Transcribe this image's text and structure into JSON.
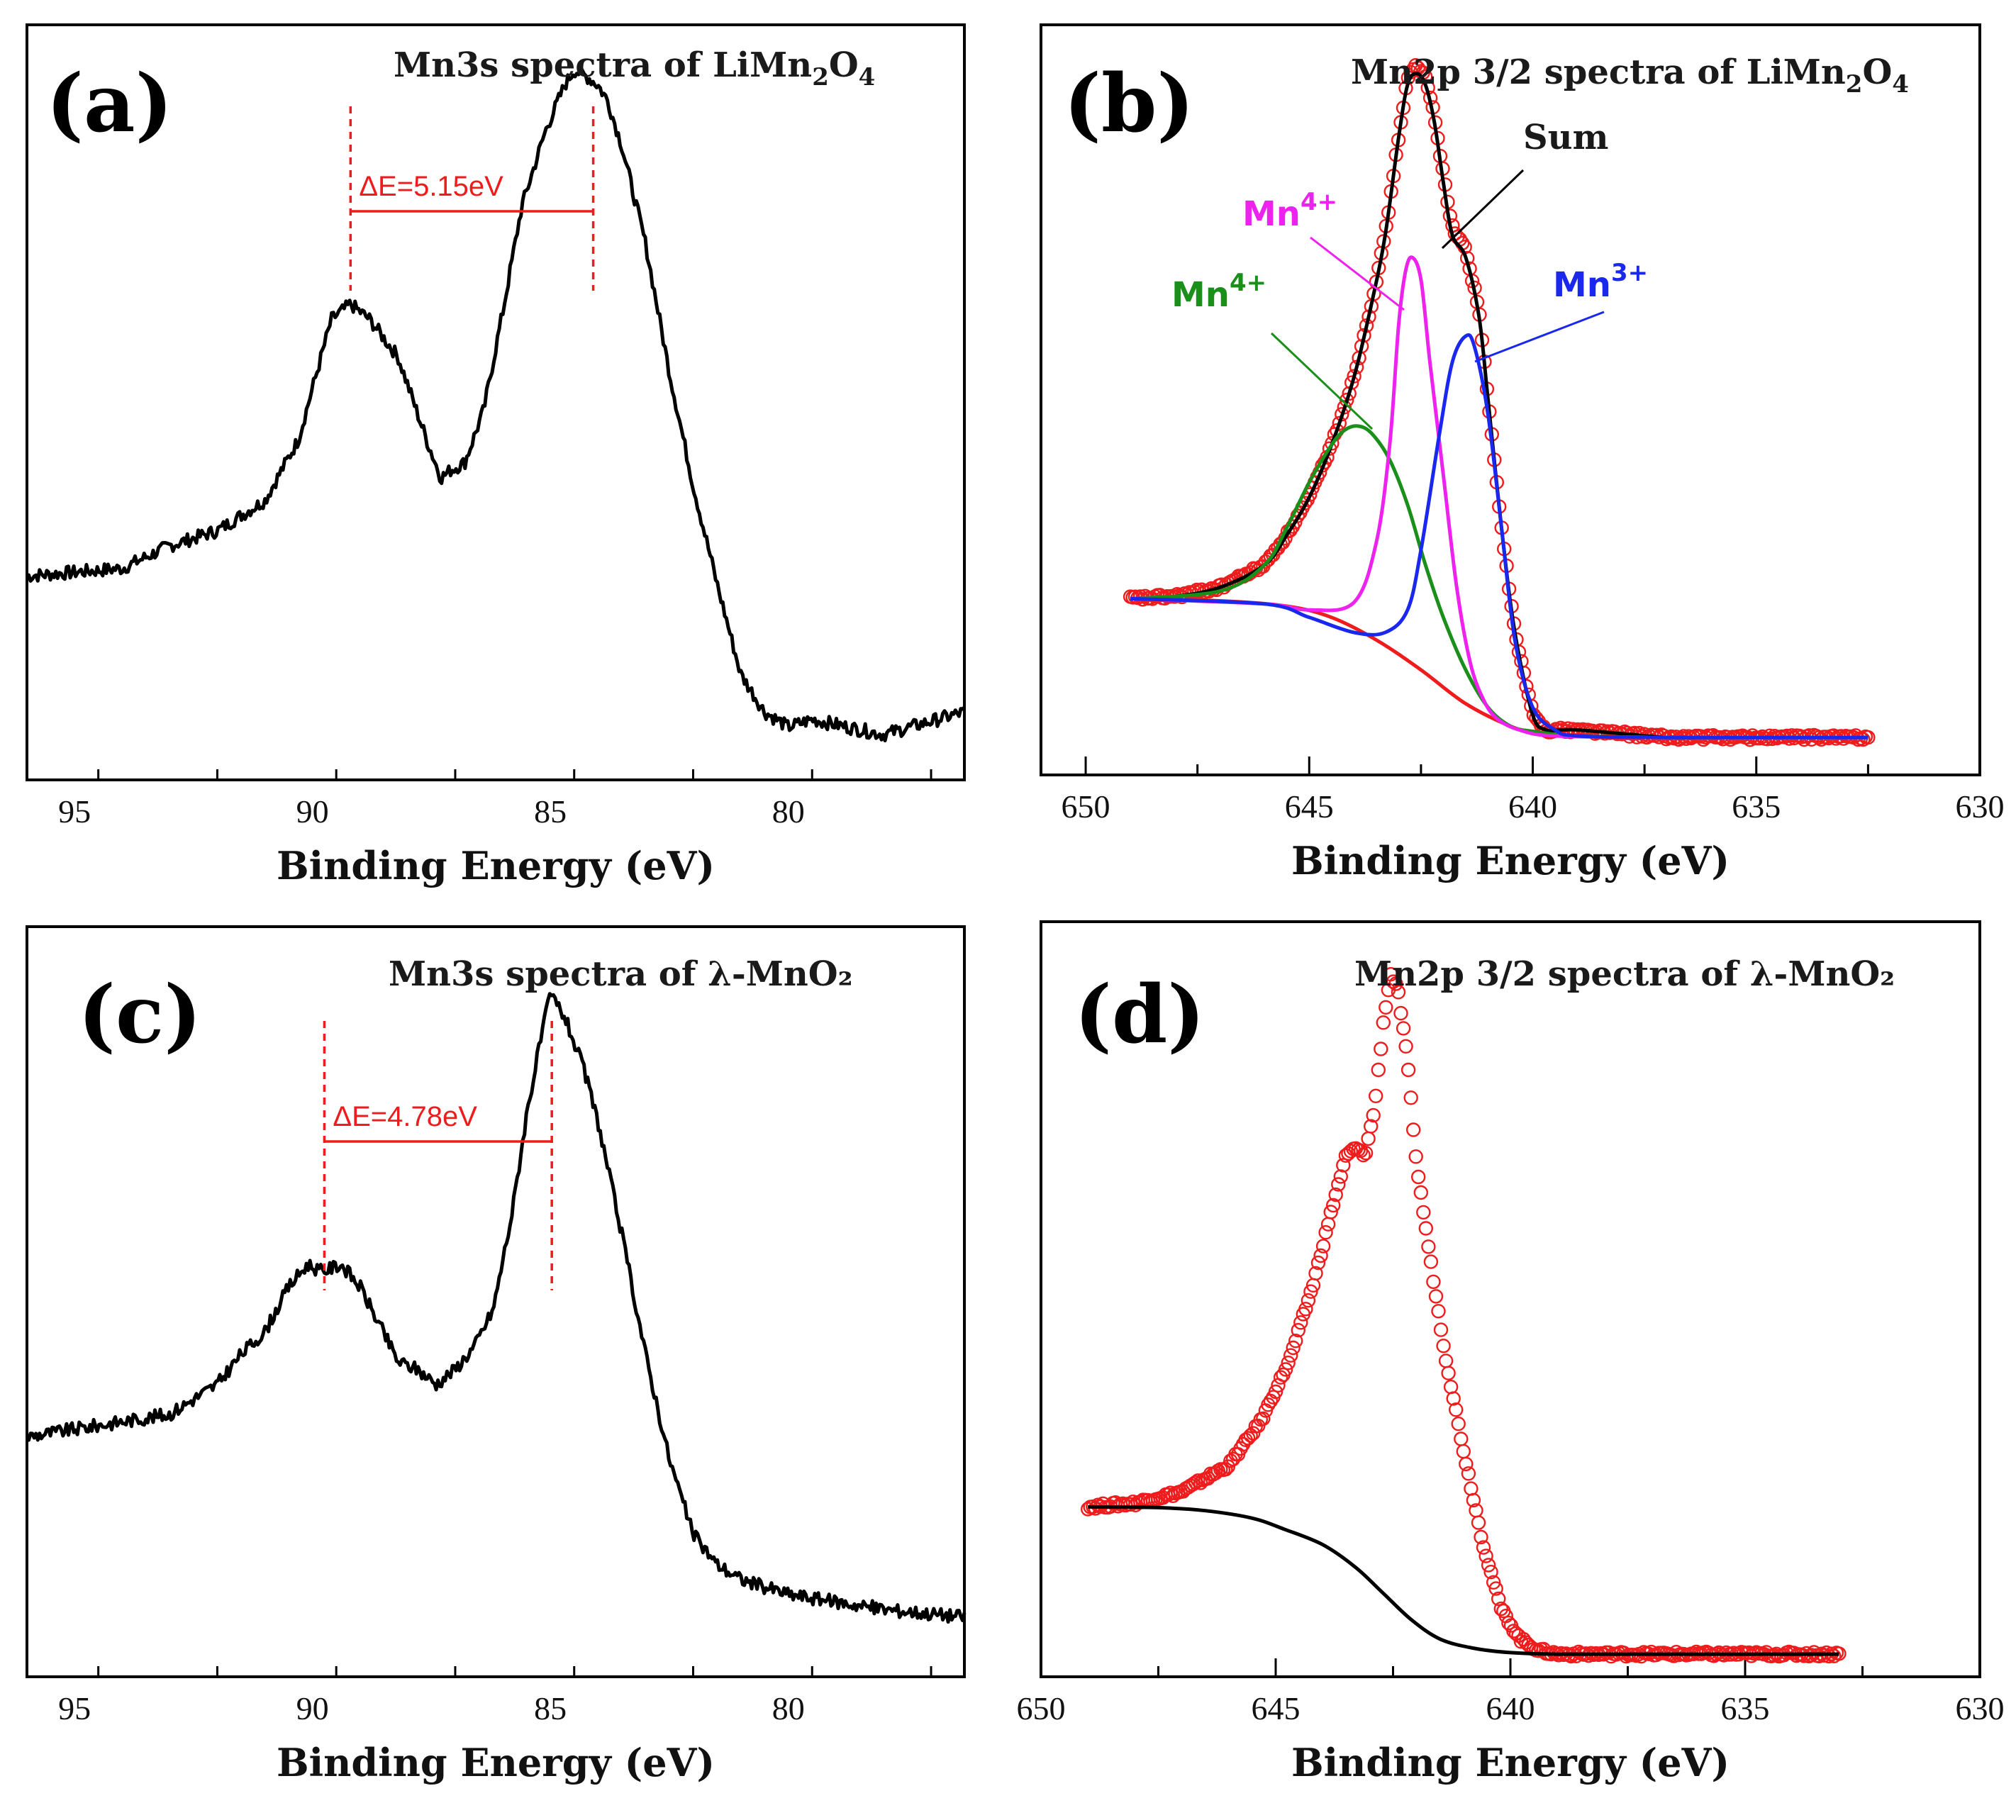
{
  "figure": {
    "panels": [
      {
        "id": "a",
        "label": "(a)",
        "title_pre": "Mn3s spectra of LiMn",
        "title_sub1": "2",
        "title_mid": "O",
        "title_sub2": "4"
      },
      {
        "id": "b",
        "label": "(b)",
        "title_pre": "Mn2p 3/2 spectra of LiMn",
        "title_sub1": "2",
        "title_mid": "O",
        "title_sub2": "4"
      },
      {
        "id": "c",
        "label": "(c)",
        "title_pre": "Mn3s spectra of λ-MnO₂"
      },
      {
        "id": "d",
        "label": "(d)",
        "title_pre": "Mn2p 3/2 spectra of λ-MnO₂"
      }
    ]
  },
  "colors": {
    "black": "#000000",
    "red": "#ee1c1c",
    "green": "#1a8f1a",
    "magenta": "#ee22ee",
    "blue": "#1a28ee"
  },
  "chart_data": [
    {
      "id": "a",
      "type": "line",
      "title": "Mn3s spectra of LiMn2O4",
      "xlabel": "Binding Energy (eV)",
      "ylabel": "",
      "xlim": [
        96,
        76.3
      ],
      "ylim": [
        0,
        1
      ],
      "xticks": [
        95,
        90,
        85,
        80
      ],
      "series": [
        {
          "name": "Mn3s",
          "color": "black",
          "style": "line",
          "x": [
            96,
            94,
            93,
            92,
            91,
            90.3,
            89.6,
            89.2,
            88.8,
            88.2,
            87.6,
            87.3,
            87.1,
            86.8,
            86.4,
            86.0,
            85.6,
            85.1,
            84.7,
            84.5,
            84.2,
            84.0,
            83.8,
            83.5,
            83.0,
            82.5,
            82.0,
            81.5,
            81.0,
            80.5,
            80.0,
            79.5,
            78.0,
            76.3
          ],
          "y": [
            0.27,
            0.28,
            0.31,
            0.33,
            0.37,
            0.45,
            0.61,
            0.63,
            0.61,
            0.56,
            0.45,
            0.4,
            0.41,
            0.42,
            0.49,
            0.62,
            0.76,
            0.86,
            0.92,
            0.94,
            0.93,
            0.92,
            0.9,
            0.84,
            0.71,
            0.54,
            0.39,
            0.26,
            0.14,
            0.09,
            0.07,
            0.08,
            0.06,
            0.09
          ]
        }
      ],
      "annotations": [
        {
          "text": "ΔE=5.15eV",
          "x1": 89.2,
          "x2": 84.1,
          "color": "red"
        }
      ]
    },
    {
      "id": "b",
      "type": "line",
      "title": "Mn2p 3/2 spectra of LiMn2O4",
      "xlabel": "Binding Energy (eV)",
      "ylabel": "",
      "xlim": [
        651,
        630
      ],
      "ylim": [
        0,
        1
      ],
      "xticks": [
        650,
        645,
        640,
        635,
        630
      ],
      "series": [
        {
          "name": "Raw data",
          "color": "red",
          "style": "circles",
          "x": [
            649.0,
            648.0,
            647.0,
            646.0,
            645.5,
            645.0,
            644.5,
            644.0,
            643.6,
            643.3,
            643.0,
            642.8,
            642.6,
            642.4,
            642.2,
            642.0,
            641.8,
            641.5,
            641.2,
            641.0,
            640.7,
            640.4,
            640.0,
            639.7,
            639.4,
            639.0,
            638.0,
            637.0,
            636.0,
            635.0,
            634.0,
            632.5
          ],
          "y": [
            0.235,
            0.238,
            0.25,
            0.28,
            0.32,
            0.37,
            0.44,
            0.53,
            0.63,
            0.72,
            0.85,
            0.93,
            0.945,
            0.93,
            0.88,
            0.8,
            0.73,
            0.7,
            0.62,
            0.5,
            0.33,
            0.19,
            0.08,
            0.06,
            0.06,
            0.06,
            0.055,
            0.05,
            0.05,
            0.05,
            0.05,
            0.05
          ]
        },
        {
          "name": "Sum",
          "color": "black",
          "style": "line",
          "x": [
            649.0,
            648.0,
            647.0,
            646.0,
            645.5,
            645.0,
            644.5,
            644.0,
            643.6,
            643.3,
            643.0,
            642.8,
            642.6,
            642.4,
            642.2,
            642.0,
            641.8,
            641.5,
            641.2,
            641.0,
            640.7,
            640.4,
            640.0,
            639.7,
            639.4,
            639.0,
            638.0,
            637.0,
            636.0,
            635.0,
            634.0,
            632.5
          ],
          "y": [
            0.235,
            0.238,
            0.25,
            0.28,
            0.32,
            0.37,
            0.44,
            0.53,
            0.63,
            0.72,
            0.85,
            0.92,
            0.935,
            0.92,
            0.87,
            0.79,
            0.72,
            0.69,
            0.61,
            0.5,
            0.33,
            0.19,
            0.08,
            0.06,
            0.06,
            0.06,
            0.055,
            0.05,
            0.05,
            0.05,
            0.05,
            0.05
          ]
        },
        {
          "name": "Background",
          "color": "red",
          "style": "line",
          "x": [
            649.0,
            647.0,
            645.5,
            644.5,
            643.5,
            642.5,
            641.5,
            640.5,
            640.0,
            639.0,
            637.0,
            632.5
          ],
          "y": [
            0.235,
            0.232,
            0.225,
            0.21,
            0.18,
            0.14,
            0.095,
            0.065,
            0.058,
            0.052,
            0.05,
            0.05
          ]
        },
        {
          "name": "Mn4+ (green)",
          "color": "green",
          "style": "line",
          "x": [
            649.0,
            647.0,
            646.0,
            645.5,
            645.0,
            644.5,
            644.2,
            643.9,
            643.6,
            643.2,
            642.8,
            642.4,
            642.0,
            641.5,
            641.0,
            640.5,
            640.0,
            639.0,
            637.0,
            632.5
          ],
          "y": [
            0.235,
            0.245,
            0.28,
            0.33,
            0.39,
            0.44,
            0.46,
            0.465,
            0.455,
            0.42,
            0.36,
            0.28,
            0.21,
            0.14,
            0.09,
            0.065,
            0.058,
            0.052,
            0.05,
            0.05
          ]
        },
        {
          "name": "Mn4+ (magenta)",
          "color": "magenta",
          "style": "line",
          "x": [
            649.0,
            646.0,
            645.0,
            644.0,
            643.5,
            643.2,
            643.0,
            642.85,
            642.7,
            642.5,
            642.3,
            642.0,
            641.7,
            641.4,
            641.1,
            640.8,
            640.3,
            639.5,
            637.0,
            632.5
          ],
          "y": [
            0.235,
            0.228,
            0.22,
            0.23,
            0.31,
            0.44,
            0.6,
            0.67,
            0.69,
            0.66,
            0.55,
            0.4,
            0.25,
            0.15,
            0.1,
            0.075,
            0.06,
            0.052,
            0.05,
            0.05
          ]
        },
        {
          "name": "Mn3+",
          "color": "blue",
          "style": "line",
          "x": [
            649.0,
            646.0,
            645.0,
            644.0,
            643.3,
            642.8,
            642.5,
            642.1,
            641.8,
            641.5,
            641.3,
            641.0,
            640.7,
            640.4,
            640.0,
            639.5,
            639.0,
            637.0,
            632.5
          ],
          "y": [
            0.235,
            0.228,
            0.21,
            0.19,
            0.19,
            0.22,
            0.3,
            0.45,
            0.55,
            0.585,
            0.57,
            0.48,
            0.33,
            0.18,
            0.09,
            0.06,
            0.052,
            0.05,
            0.05
          ]
        }
      ],
      "annotations": [
        {
          "text": "Sum",
          "color": "black"
        },
        {
          "text": "Mn",
          "sup": "4+",
          "color": "magenta"
        },
        {
          "text": "Mn",
          "sup": "4+",
          "color": "green"
        },
        {
          "text": "Mn",
          "sup": "3+",
          "color": "blue"
        }
      ]
    },
    {
      "id": "c",
      "type": "line",
      "title": "Mn3s spectra of λ-MnO2",
      "xlabel": "Binding Energy (eV)",
      "ylabel": "",
      "xlim": [
        96,
        76.3
      ],
      "ylim": [
        0,
        1
      ],
      "xticks": [
        95,
        90,
        85,
        80
      ],
      "series": [
        {
          "name": "Mn3s",
          "color": "black",
          "style": "line",
          "x": [
            96,
            95,
            94,
            93,
            92.5,
            92,
            91.5,
            91,
            90.5,
            90.1,
            89.8,
            89.4,
            89.0,
            88.6,
            88.2,
            87.8,
            87.4,
            87.0,
            86.6,
            86.2,
            85.8,
            85.5,
            85.2,
            85.0,
            84.7,
            84.3,
            84.0,
            83.5,
            83.0,
            82.5,
            82.0,
            81.5,
            81.0,
            80.0,
            79.0,
            78.0,
            76.3
          ],
          "y": [
            0.32,
            0.33,
            0.34,
            0.35,
            0.37,
            0.39,
            0.43,
            0.46,
            0.52,
            0.55,
            0.54,
            0.55,
            0.52,
            0.47,
            0.42,
            0.41,
            0.39,
            0.41,
            0.44,
            0.49,
            0.62,
            0.75,
            0.85,
            0.91,
            0.88,
            0.81,
            0.74,
            0.59,
            0.43,
            0.29,
            0.19,
            0.15,
            0.13,
            0.11,
            0.1,
            0.09,
            0.08
          ]
        }
      ],
      "annotations": [
        {
          "text": "ΔE=4.78eV",
          "x1": 89.75,
          "x2": 84.97,
          "color": "red"
        }
      ]
    },
    {
      "id": "d",
      "type": "line",
      "title": "Mn2p 3/2 spectra of λ-MnO2",
      "xlabel": "Binding Energy (eV)",
      "ylabel": "",
      "xlim": [
        650,
        630
      ],
      "ylim": [
        0,
        1
      ],
      "xticks": [
        650,
        645,
        640,
        635,
        630
      ],
      "series": [
        {
          "name": "Raw data",
          "color": "red",
          "style": "circles",
          "x": [
            649.0,
            648.0,
            647.0,
            646.0,
            645.3,
            644.7,
            644.2,
            643.8,
            643.5,
            643.3,
            643.1,
            642.9,
            642.7,
            642.55,
            642.4,
            642.2,
            642.0,
            641.7,
            641.4,
            641.0,
            640.6,
            640.2,
            639.8,
            639.4,
            639.0,
            638.0,
            637.0,
            636.0,
            635.0,
            634.0,
            633.0
          ],
          "y": [
            0.225,
            0.23,
            0.245,
            0.28,
            0.34,
            0.42,
            0.52,
            0.62,
            0.69,
            0.7,
            0.69,
            0.75,
            0.87,
            0.93,
            0.91,
            0.82,
            0.68,
            0.55,
            0.43,
            0.3,
            0.18,
            0.09,
            0.05,
            0.035,
            0.03,
            0.03,
            0.03,
            0.03,
            0.03,
            0.03,
            0.03
          ]
        },
        {
          "name": "Background",
          "color": "black",
          "style": "line",
          "x": [
            649.0,
            647.5,
            646.5,
            645.5,
            644.8,
            644.0,
            643.3,
            642.7,
            642.1,
            641.5,
            640.8,
            640.0,
            639.0,
            637.0,
            633.0
          ],
          "y": [
            0.225,
            0.224,
            0.22,
            0.21,
            0.195,
            0.175,
            0.145,
            0.11,
            0.075,
            0.05,
            0.038,
            0.032,
            0.03,
            0.03,
            0.03
          ]
        }
      ],
      "annotations": []
    }
  ]
}
